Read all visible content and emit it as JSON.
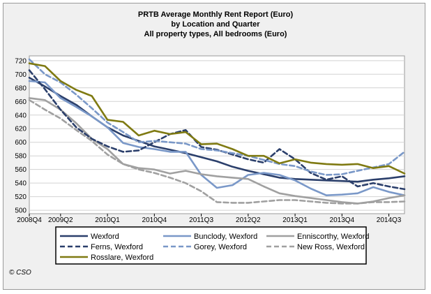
{
  "chart_data": {
    "type": "line",
    "title": [
      "PRTB Average Monthly Rent Report (Euro)",
      "by Location and Quarter",
      "All property types, All bedrooms (Euro)"
    ],
    "xlabel": "",
    "ylabel": "",
    "x": [
      "2008Q4",
      "2009Q1",
      "2009Q2",
      "2009Q3",
      "2009Q4",
      "2010Q1",
      "2010Q2",
      "2010Q3",
      "2010Q4",
      "2011Q1",
      "2011Q2",
      "2011Q3",
      "2011Q4",
      "2012Q1",
      "2012Q2",
      "2012Q3",
      "2012Q4",
      "2013Q1",
      "2013Q2",
      "2013Q3",
      "2013Q4",
      "2014Q1",
      "2014Q2",
      "2014Q3",
      "2014Q4"
    ],
    "x_tick_labels": [
      "2008Q4",
      "2009Q2",
      "2010Q1",
      "2010Q4",
      "2011Q3",
      "2012Q2",
      "2013Q1",
      "2013Q4",
      "2014Q3"
    ],
    "yticks": [
      500,
      520,
      540,
      560,
      580,
      600,
      620,
      640,
      660,
      680,
      700,
      720
    ],
    "ylim": [
      495,
      727
    ],
    "grid": "horizontal",
    "legend_position": "bottom",
    "series": [
      {
        "name": "Wexford",
        "color": "#2b3f6b",
        "dash": "solid",
        "values": [
          695,
          682,
          668,
          655,
          638,
          622,
          610,
          602,
          594,
          589,
          584,
          578,
          572,
          564,
          558,
          553,
          548,
          546,
          545,
          544,
          543,
          542,
          545,
          547,
          550
        ]
      },
      {
        "name": "Bunclody, Wexford",
        "color": "#7a98c8",
        "dash": "solid",
        "values": [
          690,
          688,
          665,
          652,
          638,
          622,
          599,
          593,
          590,
          586,
          586,
          552,
          533,
          537,
          552,
          555,
          552,
          544,
          532,
          522,
          523,
          525,
          534,
          527,
          522
        ]
      },
      {
        "name": "Enniscorthy, Wexford",
        "color": "#a0a0a0",
        "dash": "solid",
        "values": [
          665,
          662,
          648,
          628,
          605,
          590,
          568,
          562,
          560,
          554,
          558,
          553,
          550,
          548,
          546,
          535,
          525,
          521,
          518,
          515,
          512,
          510,
          513,
          518,
          522
        ]
      },
      {
        "name": "Ferns, Wexford",
        "color": "#2b3f6b",
        "dash": "dashed",
        "values": [
          706,
          678,
          648,
          622,
          605,
          594,
          586,
          588,
          600,
          612,
          618,
          593,
          589,
          582,
          575,
          570,
          590,
          575,
          555,
          545,
          550,
          535,
          540,
          535,
          531
        ]
      },
      {
        "name": "Gorey, Wexford",
        "color": "#7a98c8",
        "dash": "dashed",
        "values": [
          722,
          700,
          688,
          670,
          650,
          629,
          615,
          600,
          602,
          600,
          598,
          590,
          588,
          584,
          580,
          574,
          568,
          565,
          557,
          552,
          553,
          558,
          563,
          568,
          586
        ]
      },
      {
        "name": "New Ross, Wexford",
        "color": "#a0a0a0",
        "dash": "dashed",
        "values": [
          662,
          648,
          635,
          618,
          602,
          582,
          568,
          560,
          555,
          548,
          540,
          528,
          512,
          511,
          511,
          513,
          515,
          515,
          513,
          511,
          510,
          510,
          512,
          512,
          513
        ]
      },
      {
        "name": "Rosslare, Wexford",
        "color": "#7f7a12",
        "dash": "solid",
        "values": [
          716,
          712,
          690,
          677,
          668,
          633,
          630,
          610,
          617,
          612,
          615,
          597,
          598,
          590,
          580,
          580,
          569,
          575,
          570,
          568,
          567,
          568,
          562,
          565,
          554
        ]
      }
    ]
  },
  "copyright": "© CSO"
}
